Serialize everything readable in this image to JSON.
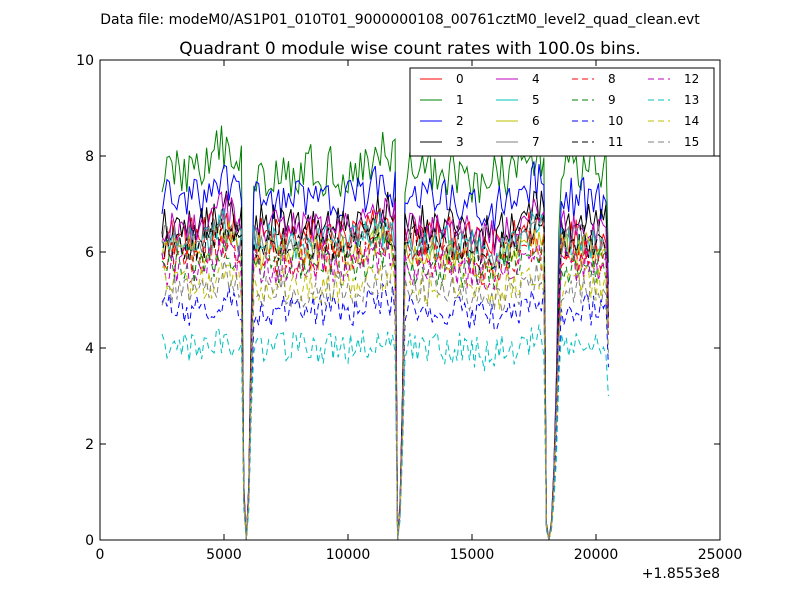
{
  "figure": {
    "suptitle": "Data file: modeM0/AS1P01_010T01_9000000108_00761cztM0_level2_quad_clean.evt"
  },
  "chart_data": {
    "type": "line",
    "title": "Quadrant 0 module wise count rates with 100.0s bins.",
    "xlabel": "",
    "ylabel": "",
    "xlim": [
      0,
      25000
    ],
    "ylim": [
      0,
      10
    ],
    "x_ticks": [
      "0",
      "5000",
      "10000",
      "15000",
      "20000",
      "25000"
    ],
    "y_ticks": [
      "0",
      "2",
      "4",
      "6",
      "8",
      "10"
    ],
    "x_offset_label": "+1.8553e8",
    "grid": false,
    "legend": {
      "placement": "top-right",
      "columns": 4
    },
    "x_range": [
      2500,
      20500
    ],
    "gaps": [
      {
        "start": 5700,
        "end": 6200,
        "min_x": 5900,
        "min_y": 0
      },
      {
        "start": 11900,
        "end": 12500,
        "min_x": 12000,
        "min_y": 0
      },
      {
        "start": 17900,
        "end": 18800,
        "min_x": 18100,
        "min_y": 0
      }
    ],
    "series": [
      {
        "name": "0",
        "color": "#ff0000",
        "dash": "solid",
        "base": 6.3,
        "noise": 0.45
      },
      {
        "name": "1",
        "color": "#008000",
        "dash": "solid",
        "base": 7.7,
        "noise": 0.55
      },
      {
        "name": "2",
        "color": "#0000ff",
        "dash": "solid",
        "base": 7.1,
        "noise": 0.45
      },
      {
        "name": "3",
        "color": "#000000",
        "dash": "solid",
        "base": 6.6,
        "noise": 0.4
      },
      {
        "name": "4",
        "color": "#bf00bf",
        "dash": "solid",
        "base": 6.5,
        "noise": 0.4
      },
      {
        "name": "5",
        "color": "#00bfbf",
        "dash": "solid",
        "base": 6.2,
        "noise": 0.4
      },
      {
        "name": "6",
        "color": "#bfbf00",
        "dash": "solid",
        "base": 6.0,
        "noise": 0.4
      },
      {
        "name": "7",
        "color": "#808080",
        "dash": "solid",
        "base": 6.2,
        "noise": 0.35
      },
      {
        "name": "8",
        "color": "#ff0000",
        "dash": "dashed",
        "base": 5.9,
        "noise": 0.4
      },
      {
        "name": "9",
        "color": "#008000",
        "dash": "dashed",
        "base": 5.7,
        "noise": 0.4
      },
      {
        "name": "10",
        "color": "#0000ff",
        "dash": "dashed",
        "base": 4.8,
        "noise": 0.35
      },
      {
        "name": "11",
        "color": "#000000",
        "dash": "dashed",
        "base": 6.2,
        "noise": 0.4
      },
      {
        "name": "12",
        "color": "#bf00bf",
        "dash": "dashed",
        "base": 5.7,
        "noise": 0.4
      },
      {
        "name": "13",
        "color": "#00bfbf",
        "dash": "dashed",
        "base": 4.0,
        "noise": 0.35
      },
      {
        "name": "14",
        "color": "#bfbf00",
        "dash": "dashed",
        "base": 5.3,
        "noise": 0.4
      },
      {
        "name": "15",
        "color": "#808080",
        "dash": "dashed",
        "base": 5.2,
        "noise": 0.35
      }
    ]
  }
}
